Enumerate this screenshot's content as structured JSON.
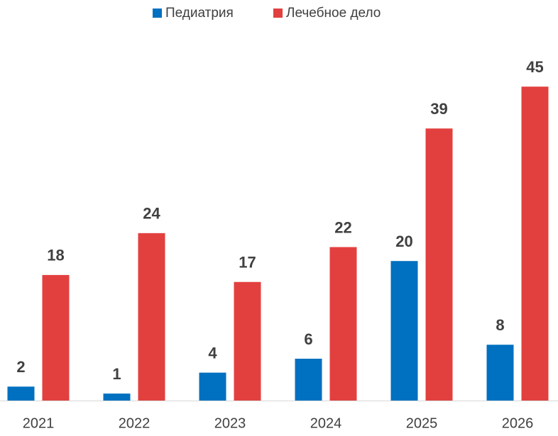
{
  "chart_data": {
    "type": "bar",
    "categories": [
      "2021",
      "2022",
      "2023",
      "2024",
      "2025",
      "2026"
    ],
    "series": [
      {
        "name": "Педиатрия",
        "color": "#0070c0",
        "values": [
          2,
          1,
          4,
          6,
          20,
          8
        ]
      },
      {
        "name": "Лечебное дело",
        "color": "#e2403f",
        "values": [
          18,
          24,
          17,
          22,
          39,
          45
        ]
      }
    ],
    "legend": "top"
  }
}
